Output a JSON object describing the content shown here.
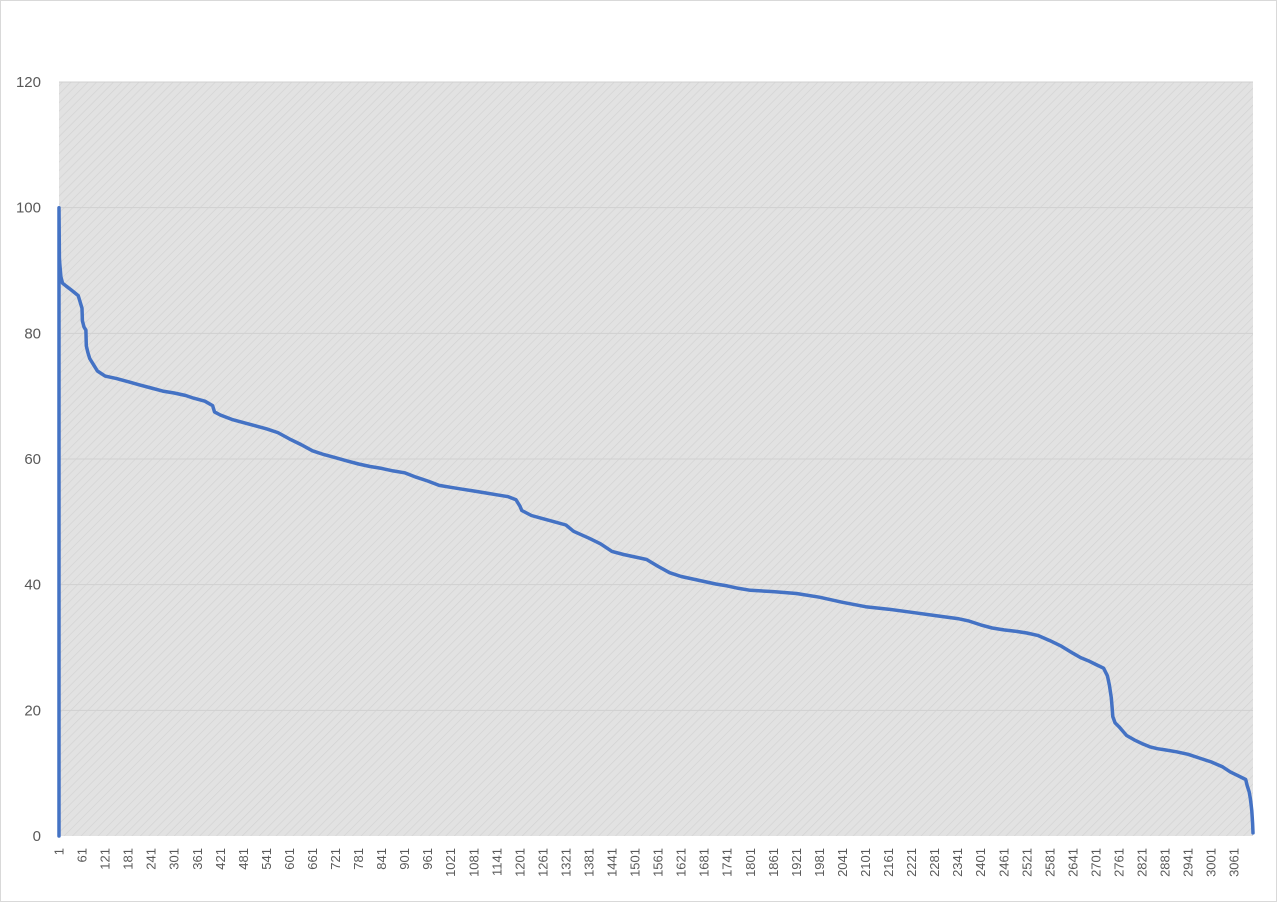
{
  "chart_data": {
    "type": "line",
    "title": "",
    "xlabel": "",
    "ylabel": "",
    "ylim": [
      0,
      120
    ],
    "yticks": [
      0,
      20,
      40,
      60,
      80,
      100,
      120
    ],
    "xlim": [
      1,
      3110
    ],
    "x_tick_labels": [
      "1",
      "61",
      "121",
      "181",
      "241",
      "301",
      "361",
      "421",
      "481",
      "541",
      "601",
      "661",
      "721",
      "781",
      "841",
      "901",
      "961",
      "1021",
      "1081",
      "1141",
      "1201",
      "1261",
      "1321",
      "1381",
      "1441",
      "1501",
      "1561",
      "1621",
      "1681",
      "1741",
      "1801",
      "1861",
      "1921",
      "1981",
      "2041",
      "2101",
      "2161",
      "2221",
      "2281",
      "2341",
      "2401",
      "2461",
      "2521",
      "2581",
      "2641",
      "2701",
      "2761",
      "2821",
      "2881",
      "2941",
      "3001",
      "3061"
    ],
    "grid": true,
    "legend": "none",
    "series_color": "#4472C4",
    "plot_background": "#e3e3e3",
    "series": [
      {
        "points": [
          [
            1,
            0
          ],
          [
            1,
            100
          ],
          [
            2,
            92
          ],
          [
            3,
            91
          ],
          [
            6,
            89
          ],
          [
            10,
            88
          ],
          [
            20,
            87.5
          ],
          [
            31,
            87
          ],
          [
            41,
            86.5
          ],
          [
            51,
            86
          ],
          [
            56,
            85
          ],
          [
            61,
            84
          ],
          [
            62,
            82
          ],
          [
            66,
            81
          ],
          [
            71,
            80.5
          ],
          [
            72,
            78
          ],
          [
            76,
            77
          ],
          [
            81,
            76
          ],
          [
            91,
            75
          ],
          [
            101,
            74
          ],
          [
            121,
            73.2
          ],
          [
            151,
            72.8
          ],
          [
            181,
            72.3
          ],
          [
            211,
            71.8
          ],
          [
            241,
            71.3
          ],
          [
            271,
            70.8
          ],
          [
            301,
            70.5
          ],
          [
            331,
            70.1
          ],
          [
            351,
            69.7
          ],
          [
            381,
            69.2
          ],
          [
            401,
            68.5
          ],
          [
            406,
            67.5
          ],
          [
            421,
            67
          ],
          [
            451,
            66.3
          ],
          [
            481,
            65.8
          ],
          [
            511,
            65.3
          ],
          [
            541,
            64.8
          ],
          [
            571,
            64.2
          ],
          [
            601,
            63.2
          ],
          [
            631,
            62.3
          ],
          [
            661,
            61.3
          ],
          [
            691,
            60.7
          ],
          [
            721,
            60.2
          ],
          [
            751,
            59.7
          ],
          [
            781,
            59.2
          ],
          [
            811,
            58.8
          ],
          [
            841,
            58.5
          ],
          [
            871,
            58.1
          ],
          [
            901,
            57.8
          ],
          [
            931,
            57.1
          ],
          [
            961,
            56.5
          ],
          [
            991,
            55.8
          ],
          [
            1021,
            55.5
          ],
          [
            1051,
            55.2
          ],
          [
            1081,
            54.9
          ],
          [
            1111,
            54.6
          ],
          [
            1141,
            54.3
          ],
          [
            1171,
            54
          ],
          [
            1191,
            53.5
          ],
          [
            1201,
            52.5
          ],
          [
            1206,
            51.8
          ],
          [
            1231,
            51
          ],
          [
            1261,
            50.5
          ],
          [
            1291,
            50
          ],
          [
            1321,
            49.5
          ],
          [
            1341,
            48.5
          ],
          [
            1381,
            47.4
          ],
          [
            1411,
            46.5
          ],
          [
            1441,
            45.3
          ],
          [
            1471,
            44.8
          ],
          [
            1501,
            44.4
          ],
          [
            1531,
            44
          ],
          [
            1561,
            42.9
          ],
          [
            1591,
            41.9
          ],
          [
            1621,
            41.3
          ],
          [
            1651,
            40.9
          ],
          [
            1681,
            40.5
          ],
          [
            1711,
            40.1
          ],
          [
            1741,
            39.8
          ],
          [
            1771,
            39.4
          ],
          [
            1801,
            39.1
          ],
          [
            1861,
            38.9
          ],
          [
            1921,
            38.6
          ],
          [
            1981,
            38
          ],
          [
            2041,
            37.2
          ],
          [
            2101,
            36.5
          ],
          [
            2161,
            36.1
          ],
          [
            2221,
            35.6
          ],
          [
            2281,
            35.1
          ],
          [
            2341,
            34.6
          ],
          [
            2371,
            34.2
          ],
          [
            2401,
            33.6
          ],
          [
            2431,
            33.1
          ],
          [
            2461,
            32.8
          ],
          [
            2491,
            32.6
          ],
          [
            2521,
            32.3
          ],
          [
            2551,
            31.9
          ],
          [
            2581,
            31.1
          ],
          [
            2611,
            30.2
          ],
          [
            2641,
            29.1
          ],
          [
            2661,
            28.4
          ],
          [
            2681,
            27.9
          ],
          [
            2701,
            27.3
          ],
          [
            2721,
            26.7
          ],
          [
            2731,
            25.5
          ],
          [
            2736,
            24
          ],
          [
            2741,
            22
          ],
          [
            2743,
            20.5
          ],
          [
            2745,
            19
          ],
          [
            2751,
            18
          ],
          [
            2761,
            17.4
          ],
          [
            2771,
            16.7
          ],
          [
            2781,
            16
          ],
          [
            2801,
            15.3
          ],
          [
            2821,
            14.7
          ],
          [
            2841,
            14.2
          ],
          [
            2861,
            13.9
          ],
          [
            2881,
            13.7
          ],
          [
            2911,
            13.4
          ],
          [
            2941,
            13
          ],
          [
            2971,
            12.4
          ],
          [
            3001,
            11.8
          ],
          [
            3031,
            11
          ],
          [
            3051,
            10.2
          ],
          [
            3071,
            9.6
          ],
          [
            3091,
            9
          ],
          [
            3095,
            8
          ],
          [
            3100,
            7
          ],
          [
            3103,
            6
          ],
          [
            3105,
            5
          ],
          [
            3107,
            4
          ],
          [
            3108,
            3
          ],
          [
            3109,
            2
          ],
          [
            3110,
            0.5
          ]
        ]
      }
    ]
  }
}
